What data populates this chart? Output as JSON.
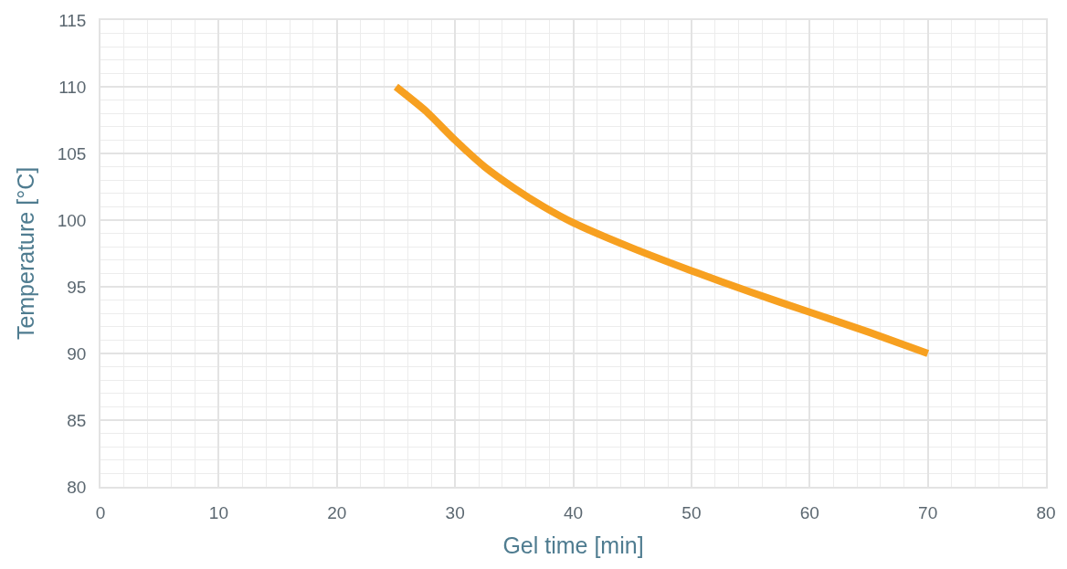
{
  "chart_data": {
    "type": "line",
    "xlabel": "Gel time [min]",
    "ylabel": "Temperature [°C]",
    "series": [
      {
        "color": "#f7a020",
        "x": [
          25,
          27.5,
          30,
          32.5,
          35,
          37.5,
          40,
          45,
          50,
          55,
          60,
          65,
          70
        ],
        "values": [
          110,
          108.2,
          106,
          104,
          102.4,
          101,
          99.8,
          97.9,
          96.2,
          94.6,
          93.1,
          91.6,
          90
        ]
      }
    ],
    "xlim": [
      0,
      80
    ],
    "xticks": [
      0,
      10,
      20,
      30,
      40,
      50,
      60,
      70,
      80
    ],
    "ylim": [
      80,
      115
    ],
    "yticks": [
      80,
      85,
      90,
      95,
      100,
      105,
      110,
      115
    ],
    "grid": true,
    "marker": "none",
    "line_style": "solid"
  }
}
